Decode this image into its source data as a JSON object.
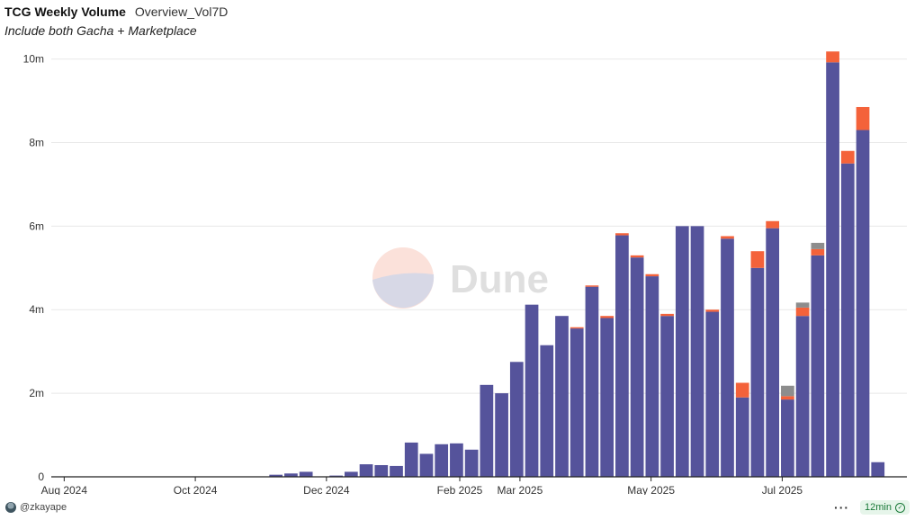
{
  "header": {
    "title": "TCG Weekly Volume",
    "query_name": "Overview_Vol7D",
    "subtitle": "Include both Gacha + Marketplace"
  },
  "watermark": {
    "text": "Dune"
  },
  "footer": {
    "author": "@zkayape",
    "more": "···",
    "age": "12min"
  },
  "colors": {
    "main": "#55539b",
    "secondary": "#f4623a",
    "tertiary": "#8d8d8d",
    "grid": "#e8e8e8",
    "axis": "#222222"
  },
  "chart_data": {
    "type": "bar",
    "stacked": true,
    "grid": true,
    "y_ticks": [
      "0",
      "2m",
      "4m",
      "6m",
      "8m",
      "10m"
    ],
    "y_tick_values": [
      0,
      2,
      4,
      6,
      8,
      10
    ],
    "ylim": [
      0,
      10.4
    ],
    "x_ticks": [
      "Aug 2024",
      "Oct 2024",
      "Dec 2024",
      "Feb 2025",
      "Mar 2025",
      "May 2025",
      "Jul 2025"
    ],
    "x_tick_dates": [
      "2024-08-01",
      "2024-10-01",
      "2024-12-01",
      "2025-02-01",
      "2025-03-01",
      "2025-05-01",
      "2025-07-01"
    ],
    "xlim": [
      "2024-07-26",
      "2025-08-28"
    ],
    "weeks": [
      "2024-11-04",
      "2024-11-11",
      "2024-11-18",
      "2024-11-25",
      "2024-12-02",
      "2024-12-09",
      "2024-12-16",
      "2024-12-23",
      "2024-12-30",
      "2025-01-06",
      "2025-01-13",
      "2025-01-20",
      "2025-01-27",
      "2025-02-03",
      "2025-02-10",
      "2025-02-17",
      "2025-02-24",
      "2025-03-03",
      "2025-03-10",
      "2025-03-17",
      "2025-03-24",
      "2025-03-31",
      "2025-04-07",
      "2025-04-14",
      "2025-04-21",
      "2025-04-28",
      "2025-05-05",
      "2025-05-12",
      "2025-05-19",
      "2025-05-26",
      "2025-06-02",
      "2025-06-09",
      "2025-06-16",
      "2025-06-23",
      "2025-06-30",
      "2025-07-07",
      "2025-07-14",
      "2025-07-21",
      "2025-07-28",
      "2025-08-04",
      "2025-08-11",
      "2025-08-18"
    ],
    "series": [
      {
        "values": [
          0.05,
          0.08,
          0.12,
          0.01,
          0.03,
          0.12,
          0.3,
          0.28,
          0.26,
          0.82,
          0.55,
          0.78,
          0.8,
          0.65,
          2.2,
          2.0,
          2.75,
          4.12,
          3.15,
          3.85,
          3.55,
          4.55,
          3.8,
          5.78,
          5.25,
          4.8,
          3.85,
          6.0,
          6.0,
          3.95,
          5.7,
          1.9,
          5.0,
          5.95,
          1.85,
          3.85,
          5.3,
          9.92,
          7.5,
          8.3,
          0.35,
          0
        ],
        "color": "#55539b"
      },
      {
        "values": [
          0,
          0,
          0,
          0,
          0,
          0,
          0,
          0,
          0,
          0,
          0,
          0,
          0,
          0,
          0,
          0,
          0,
          0,
          0,
          0,
          0.03,
          0.03,
          0.05,
          0.05,
          0.05,
          0.05,
          0.05,
          0,
          0,
          0.05,
          0.06,
          0.35,
          0.4,
          0.17,
          0.08,
          0.2,
          0.15,
          0.26,
          0.3,
          0.55,
          0,
          0
        ],
        "color": "#f4623a"
      },
      {
        "values": [
          0,
          0,
          0,
          0,
          0,
          0,
          0,
          0,
          0,
          0,
          0,
          0,
          0,
          0,
          0,
          0,
          0,
          0,
          0,
          0,
          0,
          0,
          0,
          0,
          0,
          0,
          0,
          0,
          0,
          0,
          0,
          0,
          0,
          0,
          0.25,
          0.12,
          0.15,
          0,
          0,
          0,
          0,
          0
        ],
        "color": "#8d8d8d"
      }
    ]
  }
}
